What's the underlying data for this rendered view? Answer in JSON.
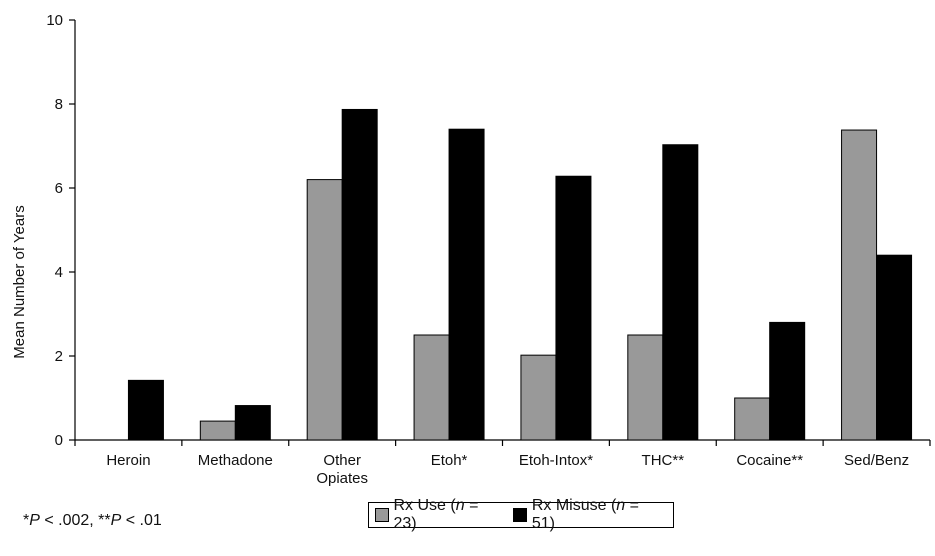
{
  "chart_data": {
    "type": "bar",
    "categories": [
      "Heroin",
      "Methadone",
      "Other\nOpiates",
      "Etoh*",
      "Etoh-Intox*",
      "THC**",
      "Cocaine**",
      "Sed/Benz"
    ],
    "series": [
      {
        "name": "Rx Use (n = 23)",
        "color": "#999999",
        "values": [
          0,
          0.45,
          6.2,
          2.5,
          2.02,
          2.5,
          1.0,
          7.38
        ]
      },
      {
        "name": "Rx Misuse (n = 51)",
        "color": "#000000",
        "values": [
          1.42,
          0.82,
          7.87,
          7.4,
          6.28,
          7.03,
          2.8,
          4.4
        ]
      }
    ],
    "ylabel": "Mean Number of Years",
    "ylim": [
      0,
      10
    ],
    "yticks": [
      0,
      2,
      4,
      6,
      8,
      10
    ],
    "grid": false,
    "legend_position": "bottom-center"
  },
  "footnote": {
    "p1_sym": "*",
    "p1_var": "P",
    "p1_val": " < .002, ",
    "p2_sym": "**",
    "p2_var": "P",
    "p2_val": " < .01"
  },
  "legend": {
    "s1_pre": "Rx Use (",
    "s1_n": "n",
    "s1_post": " = 23)",
    "s2_pre": "Rx Misuse (",
    "s2_n": "n",
    "s2_post": " = 51)"
  }
}
